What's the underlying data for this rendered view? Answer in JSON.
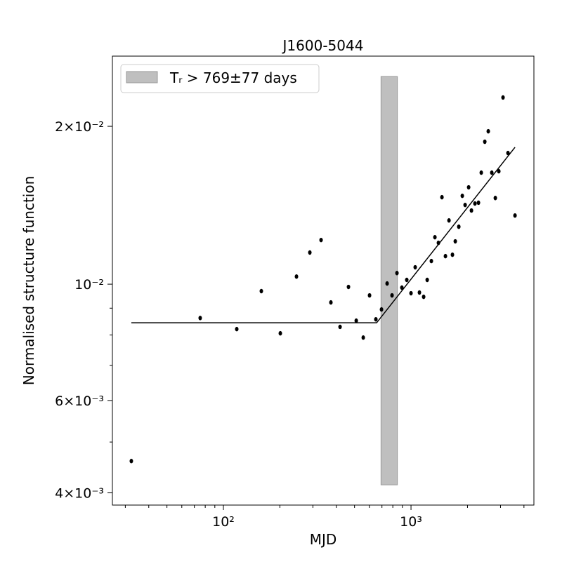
{
  "chart_data": {
    "type": "scatter",
    "title": "J1600-5044",
    "xlabel": "MJD",
    "ylabel": "Normalised structure function",
    "xscale": "log",
    "yscale": "log",
    "xlim": [
      25.6,
      4520
    ],
    "ylim": [
      0.003791,
      0.02722
    ],
    "xticks": [
      {
        "value": 100,
        "label": "10²"
      },
      {
        "value": 1000,
        "label": "10³"
      }
    ],
    "yticks": [
      {
        "value": 0.004,
        "label": "4×10⁻³"
      },
      {
        "value": 0.006,
        "label": "6×10⁻³"
      },
      {
        "value": 0.01,
        "label": "10⁻²"
      },
      {
        "value": 0.02,
        "label": "2×10⁻²"
      }
    ],
    "xminorticks": [
      30,
      40,
      50,
      60,
      70,
      80,
      90,
      200,
      300,
      400,
      500,
      600,
      700,
      800,
      900,
      2000,
      3000,
      4000
    ],
    "yminorticks": [
      0.005,
      0.007,
      0.008,
      0.009
    ],
    "color": "#000000",
    "x": [
      32.3,
      75.2,
      117.8,
      159.3,
      201.1,
      245.2,
      288.9,
      331.6,
      374.1,
      418.6,
      464.2,
      510.6,
      556.5,
      601.2,
      649.7,
      696.2,
      745.9,
      792.3,
      841.7,
      894.0,
      949.5,
      1000,
      1053,
      1109,
      1168,
      1220,
      1284,
      1341,
      1400,
      1462,
      1526,
      1594,
      1663,
      1722,
      1798,
      1877,
      1943,
      2029,
      2100,
      2192,
      2289,
      2369,
      2474,
      2582,
      2696,
      2815,
      2938,
      3094,
      3288,
      3584
    ],
    "values": [
      0.0046,
      0.00862,
      0.00821,
      0.0097,
      0.00806,
      0.01034,
      0.01149,
      0.01214,
      0.00923,
      0.00829,
      0.00988,
      0.00852,
      0.00791,
      0.00952,
      0.00857,
      0.00895,
      0.01003,
      0.00952,
      0.0105,
      0.00985,
      0.01019,
      0.00961,
      0.01077,
      0.00964,
      0.00946,
      0.01019,
      0.01107,
      0.01229,
      0.01199,
      0.01465,
      0.01131,
      0.01323,
      0.01138,
      0.01207,
      0.01287,
      0.01474,
      0.01416,
      0.0153,
      0.01382,
      0.01425,
      0.0143,
      0.01632,
      0.01869,
      0.01957,
      0.01632,
      0.0146,
      0.01642,
      0.0227,
      0.01779,
      0.01352
    ],
    "fit": {
      "x": [
        32.3,
        655.7,
        3584
      ],
      "values": [
        0.00844,
        0.00844,
        0.01824
      ],
      "color": "#000000"
    },
    "band": {
      "name": "Tᵣ > 769±77 days",
      "x": [
        692,
        846
      ],
      "y": [
        0.004143,
        0.02489
      ],
      "color": "#bfbfbf"
    },
    "legend": "upper left"
  }
}
